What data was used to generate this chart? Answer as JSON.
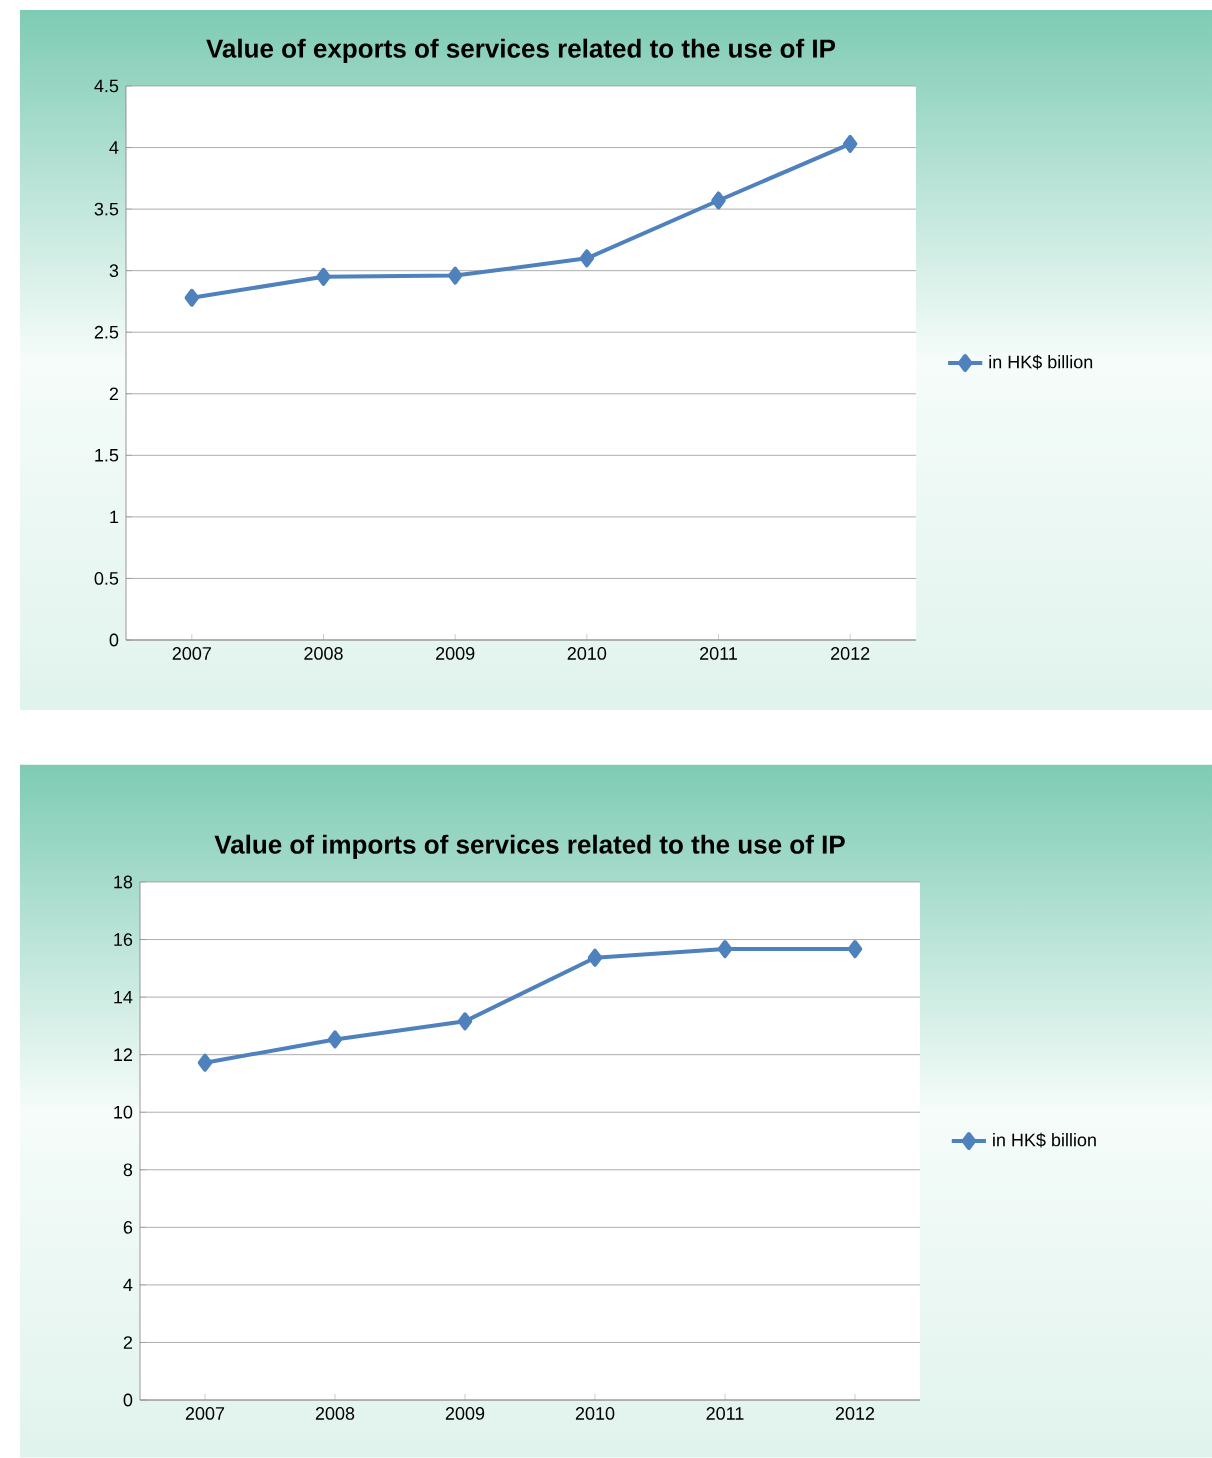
{
  "chart_data": [
    {
      "type": "line",
      "title": "Value of exports of services related to the use of IP",
      "categories": [
        "2007",
        "2008",
        "2009",
        "2010",
        "2011",
        "2012"
      ],
      "series": [
        {
          "name": "in HK$ billion",
          "color": "#4f81bd",
          "values": [
            2.78,
            2.95,
            2.96,
            3.1,
            3.57,
            4.03
          ]
        }
      ],
      "ylim": [
        0,
        4.5
      ],
      "yticks": [
        0,
        0.5,
        1,
        1.5,
        2,
        2.5,
        3,
        3.5,
        4,
        4.5
      ],
      "grid": "y",
      "legend": "right",
      "marker": "diamond",
      "line_style": "solid"
    },
    {
      "type": "line",
      "title": "Value of imports of services related to the use of IP",
      "categories": [
        "2007",
        "2008",
        "2009",
        "2010",
        "2011",
        "2012"
      ],
      "series": [
        {
          "name": "in HK$ billion",
          "color": "#4f81bd",
          "values": [
            11.72,
            12.53,
            13.16,
            15.37,
            15.67,
            15.67
          ]
        }
      ],
      "ylim": [
        0,
        18
      ],
      "yticks": [
        0,
        2,
        4,
        6,
        8,
        10,
        12,
        14,
        16,
        18
      ],
      "grid": "y",
      "legend": "right",
      "marker": "diamond",
      "line_style": "solid"
    }
  ]
}
